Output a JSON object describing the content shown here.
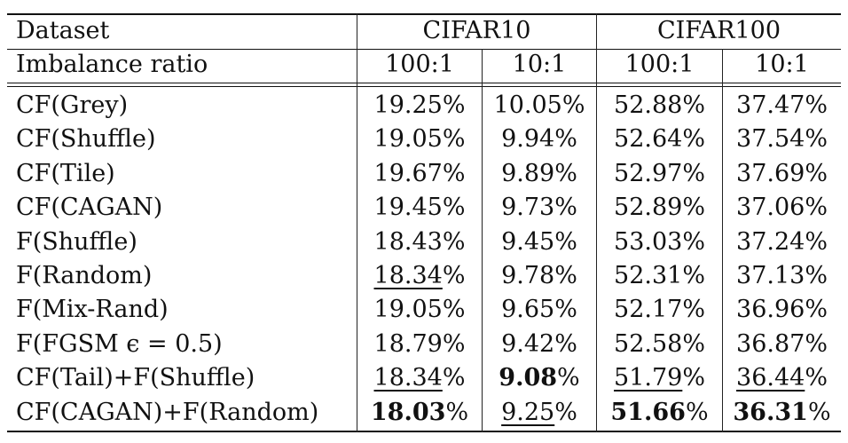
{
  "header": {
    "col0_row1": "Dataset",
    "col0_row2": "Imbalance ratio",
    "groups": [
      "CIFAR10",
      "CIFAR100"
    ],
    "ratios": [
      "100:1",
      "10:1",
      "100:1",
      "10:1"
    ]
  },
  "rows": [
    {
      "method": "CF(Grey)",
      "cells": [
        {
          "v": "19.25",
          "s": "%"
        },
        {
          "v": "10.05",
          "s": "%"
        },
        {
          "v": "52.88",
          "s": "%"
        },
        {
          "v": "37.47",
          "s": "%"
        }
      ]
    },
    {
      "method": "CF(Shuffle)",
      "cells": [
        {
          "v": "19.05",
          "s": "%"
        },
        {
          "v": "9.94",
          "s": "%"
        },
        {
          "v": "52.64",
          "s": "%"
        },
        {
          "v": "37.54",
          "s": "%"
        }
      ]
    },
    {
      "method": "CF(Tile)",
      "cells": [
        {
          "v": "19.67",
          "s": "%"
        },
        {
          "v": "9.89",
          "s": "%"
        },
        {
          "v": "52.97",
          "s": "%"
        },
        {
          "v": "37.69",
          "s": "%"
        }
      ]
    },
    {
      "method": "CF(CAGAN)",
      "cells": [
        {
          "v": "19.45",
          "s": "%"
        },
        {
          "v": "9.73",
          "s": "%"
        },
        {
          "v": "52.89",
          "s": "%"
        },
        {
          "v": "37.06",
          "s": "%"
        }
      ]
    },
    {
      "method": "F(Shuffle)",
      "cells": [
        {
          "v": "18.43",
          "s": "%"
        },
        {
          "v": "9.45",
          "s": "%"
        },
        {
          "v": "53.03",
          "s": "%"
        },
        {
          "v": "37.24",
          "s": "%"
        }
      ]
    },
    {
      "method": "F(Random)",
      "cells": [
        {
          "v": "18.34",
          "s": "%",
          "underline": true
        },
        {
          "v": "9.78",
          "s": "%"
        },
        {
          "v": "52.31",
          "s": "%"
        },
        {
          "v": "37.13",
          "s": "%"
        }
      ]
    },
    {
      "method": "F(Mix-Rand)",
      "cells": [
        {
          "v": "19.05",
          "s": "%"
        },
        {
          "v": "9.65",
          "s": "%"
        },
        {
          "v": "52.17",
          "s": "%"
        },
        {
          "v": "36.96",
          "s": "%"
        }
      ]
    },
    {
      "method": "F(FGSM ϵ = 0.5)",
      "cells": [
        {
          "v": "18.79",
          "s": "%"
        },
        {
          "v": "9.42",
          "s": "%"
        },
        {
          "v": "52.58",
          "s": "%"
        },
        {
          "v": "36.87",
          "s": "%"
        }
      ]
    },
    {
      "method": "CF(Tail)+F(Shuffle)",
      "cells": [
        {
          "v": "18.34",
          "s": "%",
          "underline": true
        },
        {
          "v": "9.08",
          "s": "%",
          "bold": true
        },
        {
          "v": "51.79",
          "s": "%",
          "underline": true
        },
        {
          "v": "36.44",
          "s": "%",
          "underline": true
        }
      ]
    },
    {
      "method": "CF(CAGAN)+F(Random)",
      "cells": [
        {
          "v": "18.03",
          "s": "%",
          "bold": true
        },
        {
          "v": "9.25",
          "s": "%",
          "underline": true
        },
        {
          "v": "51.66",
          "s": "%",
          "bold": true
        },
        {
          "v": "36.31",
          "s": "%",
          "bold": true
        }
      ]
    }
  ]
}
